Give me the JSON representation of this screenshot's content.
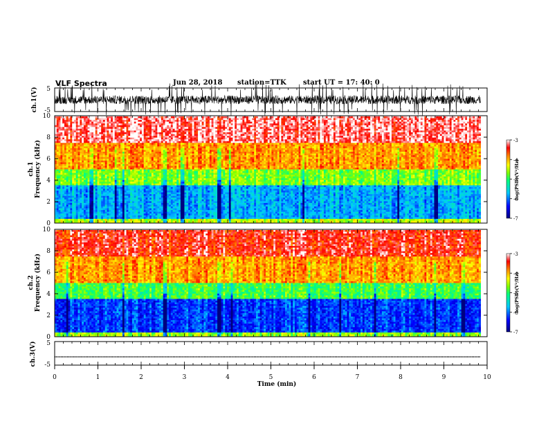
{
  "header": {
    "title": "VLF Spectra",
    "date": "Jun 28, 2018",
    "station": "station=TTK",
    "start_ut": "start UT =  17: 40: 0"
  },
  "chart_data": [
    {
      "type": "line",
      "panel": "ch1-waveform",
      "ylabel": "ch.1(V)",
      "yticks": [
        "5",
        "-5"
      ],
      "ylim": [
        -5,
        5
      ],
      "xlim": [
        0,
        10
      ],
      "data_extent_min": 9.85,
      "waveform": "noisy, mostly within about -2..2 V with frequent spikes beyond +/-5 V"
    },
    {
      "type": "heatmap",
      "panel": "ch1-spectrogram",
      "ylabel_line1": "ch.1",
      "ylabel_line2": "Frequency (kHz)",
      "yticks": [
        "0",
        "2",
        "4",
        "6",
        "8",
        "10"
      ],
      "ylim": [
        0,
        10
      ],
      "xlim": [
        0,
        10
      ],
      "data_extent_min": 9.85,
      "colorbar": {
        "label": "log(PSD)(V²/Hz)",
        "ticks": [
          "-3",
          "-4",
          "-5",
          "-6",
          "-7"
        ],
        "range": [
          -7,
          -3
        ]
      },
      "approx_profile": [
        {
          "f_khz": [
            0,
            0.4
          ],
          "log_psd": -4.5
        },
        {
          "f_khz": [
            0.4,
            3.5
          ],
          "log_psd": -5.8
        },
        {
          "f_khz": [
            3.5,
            5
          ],
          "log_psd": -4.7
        },
        {
          "f_khz": [
            5,
            7.5
          ],
          "log_psd": -3.9
        },
        {
          "f_khz": [
            7.5,
            10
          ],
          "log_psd": -3.2
        }
      ],
      "dark_columns_min": [
        0.85,
        1.4,
        1.6,
        2.55,
        2.95,
        3.8,
        4.05,
        5.75,
        7.95,
        8.8,
        8.82
      ]
    },
    {
      "type": "heatmap",
      "panel": "ch2-spectrogram",
      "ylabel_line1": "ch.2",
      "ylabel_line2": "Frequency (kHz)",
      "yticks": [
        "0",
        "2",
        "4",
        "6",
        "8",
        "10"
      ],
      "ylim": [
        0,
        10
      ],
      "xlim": [
        0,
        10
      ],
      "data_extent_min": 9.85,
      "colorbar": {
        "label": "log(PSD)(V²/Hz)",
        "ticks": [
          "-3",
          "-4",
          "-5",
          "-6",
          "-7"
        ],
        "range": [
          -7,
          -3
        ]
      },
      "approx_profile": [
        {
          "f_khz": [
            0,
            0.4
          ],
          "log_psd": -4.6
        },
        {
          "f_khz": [
            0.4,
            3.5
          ],
          "log_psd": -6.2
        },
        {
          "f_khz": [
            3.5,
            5
          ],
          "log_psd": -4.9
        },
        {
          "f_khz": [
            5,
            7.5
          ],
          "log_psd": -3.9
        },
        {
          "f_khz": [
            7.5,
            10
          ],
          "log_psd": -3.4
        }
      ],
      "dark_columns_min": [
        0.3,
        1.6,
        2.55,
        3.8,
        4.1,
        5.9,
        6.6,
        7.4,
        8.8,
        9.45
      ]
    },
    {
      "type": "line",
      "panel": "ch3-waveform",
      "ylabel": "ch.3(V)",
      "yticks": [
        "5",
        "-5"
      ],
      "ylim": [
        -5,
        5
      ],
      "xlim": [
        0,
        10
      ],
      "data_extent_min": 9.85,
      "constant_value_v": -1.5,
      "xlabel": "Time (min)",
      "xticks": [
        "0",
        "1",
        "2",
        "3",
        "4",
        "5",
        "6",
        "7",
        "8",
        "9",
        "10"
      ]
    }
  ]
}
